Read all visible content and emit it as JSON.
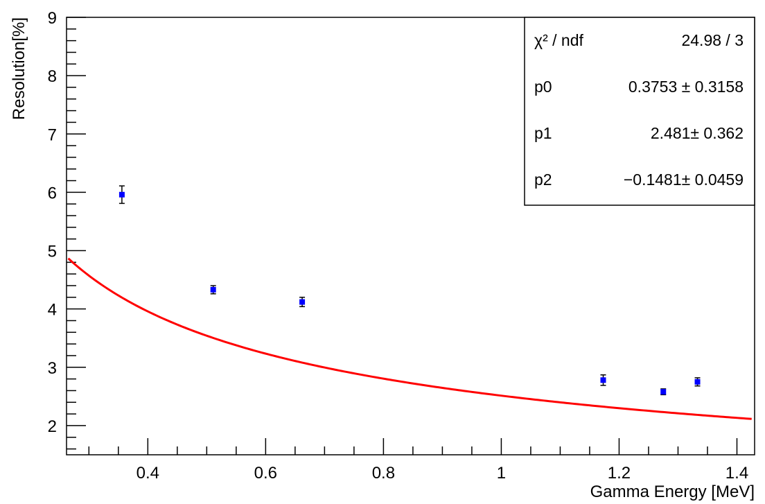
{
  "chart_data": {
    "type": "scatter",
    "title": "",
    "xlabel": "Gamma Energy [MeV]",
    "ylabel": "Resolution[%]",
    "xlim": [
      0.262,
      1.43
    ],
    "ylim": [
      1.5,
      9
    ],
    "x_ticks": [
      "0.4",
      "0.6",
      "0.8",
      "1",
      "1.2",
      "1.4"
    ],
    "y_ticks": [
      "2",
      "3",
      "4",
      "5",
      "6",
      "7",
      "8",
      "9"
    ],
    "grid": false,
    "series": [
      {
        "name": "",
        "color": "#0000ff",
        "points": [
          {
            "x": 0.356,
            "y": 5.96,
            "err": 0.15
          },
          {
            "x": 0.511,
            "y": 4.33,
            "err": 0.07
          },
          {
            "x": 0.662,
            "y": 4.12,
            "err": 0.08
          },
          {
            "x": 1.173,
            "y": 2.78,
            "err": 0.09
          },
          {
            "x": 1.275,
            "y": 2.58,
            "err": 0.05
          },
          {
            "x": 1.333,
            "y": 2.75,
            "err": 0.07
          }
        ]
      }
    ],
    "fit": {
      "color": "#ff0000",
      "model": "sqrt(p0^2 + p1^2/E + p2^2/E^2)",
      "p0": 0.3753,
      "p1": 2.481,
      "p2": -0.1481,
      "x_range": [
        0.265,
        1.425
      ]
    },
    "stats_box": {
      "placement": "top-right",
      "rows": [
        {
          "label": "χ² / ndf",
          "value": "24.98 / 3"
        },
        {
          "label": "p0",
          "value": "0.3753 ± 0.3158"
        },
        {
          "label": "p1",
          "value": "2.481± 0.362"
        },
        {
          "label": "p2",
          "value": "−0.1481± 0.0459"
        }
      ]
    }
  }
}
